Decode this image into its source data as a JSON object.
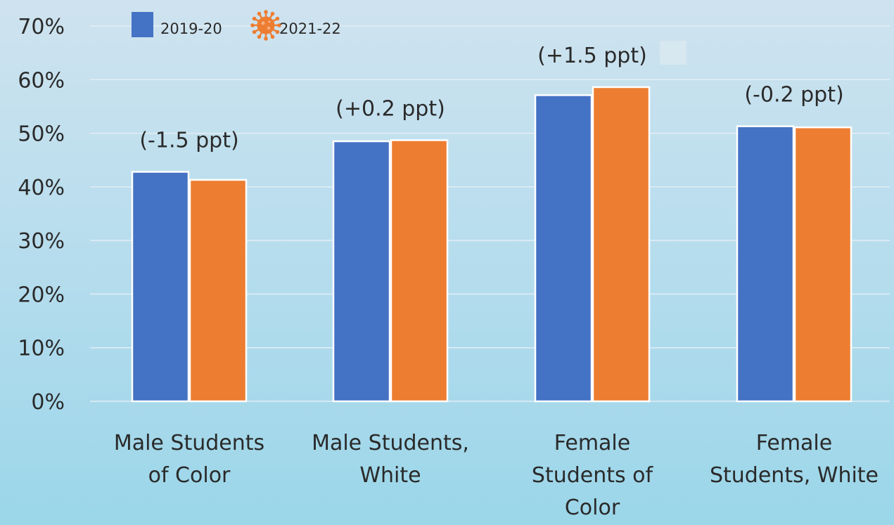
{
  "colors": {
    "series_2019": "#4472c4",
    "series_2021": "#ed7d31",
    "grid": "#e3eef4",
    "background": "#b3dced"
  },
  "chart_data": {
    "type": "bar",
    "title": "",
    "xlabel": "",
    "ylabel": "",
    "ylim": [
      0,
      0.7
    ],
    "yticks": [
      "0%",
      "10%",
      "20%",
      "30%",
      "40%",
      "50%",
      "60%",
      "70%"
    ],
    "grid": true,
    "legend_position": "top-left",
    "categories": [
      [
        "Male Students",
        "of Color"
      ],
      [
        "Male Students,",
        "White"
      ],
      [
        "Female",
        "Students of",
        "Color"
      ],
      [
        "Female",
        "Students, White"
      ]
    ],
    "series": [
      {
        "name": "2019-20",
        "color": "#4472c4",
        "icon": "square-swatch",
        "values": [
          0.428,
          0.485,
          0.571,
          0.513
        ]
      },
      {
        "name": "2021-22",
        "color": "#ed7d31",
        "icon": "virus-icon",
        "values": [
          0.413,
          0.487,
          0.586,
          0.511
        ]
      }
    ],
    "annotations": [
      "(-1.5 ppt)",
      "(+0.2 ppt)",
      "(+1.5 ppt)",
      "(-0.2 ppt)"
    ]
  }
}
